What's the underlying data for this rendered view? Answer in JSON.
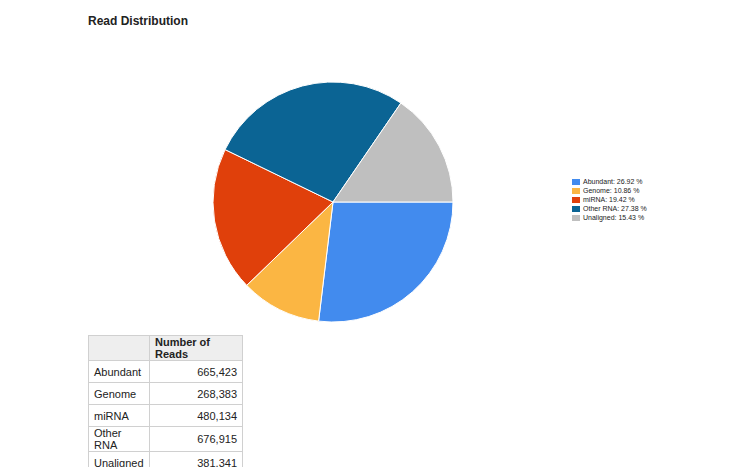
{
  "chart_data": {
    "type": "pie",
    "title": "Read Distribution",
    "categories": [
      "Abundant",
      "Genome",
      "miRNA",
      "Other RNA",
      "Unaligned"
    ],
    "values": [
      26.92,
      10.86,
      19.42,
      27.38,
      15.43
    ],
    "colors": [
      "#428bee",
      "#fbb643",
      "#e0400b",
      "#0b6494",
      "#bfbfbf"
    ],
    "legend": "right",
    "legend_labels": [
      "Abundant: 26.92 %",
      "Genome: 10.86 %",
      "miRNA: 19.42 %",
      "Other RNA: 27.38 %",
      "Unaligned: 15.43 %"
    ]
  },
  "table": {
    "header": [
      "",
      "Number of Reads"
    ],
    "rows": [
      [
        "Abundant",
        "665,423"
      ],
      [
        "Genome",
        "268,383"
      ],
      [
        "miRNA",
        "480,134"
      ],
      [
        "Other RNA",
        "676,915"
      ],
      [
        "Unaligned",
        "381,341"
      ]
    ]
  }
}
